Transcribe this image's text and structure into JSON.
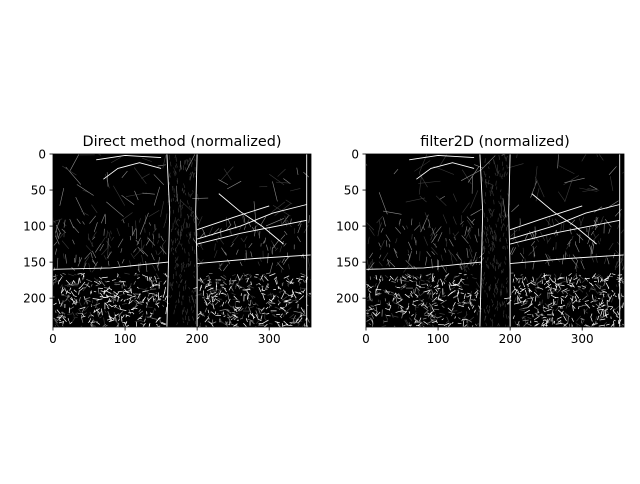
{
  "chart_data": [
    {
      "type": "heatmap",
      "title": "Direct method (normalized)",
      "xlabel": "",
      "ylabel": "",
      "xlim": [
        0,
        358
      ],
      "ylim": [
        240,
        0
      ],
      "x_ticks": [
        0,
        100,
        200,
        300
      ],
      "y_ticks": [
        0,
        50,
        100,
        150,
        200
      ],
      "colormap": "gray",
      "grid": false
    },
    {
      "type": "heatmap",
      "title": "filter2D (normalized)",
      "xlabel": "",
      "ylabel": "",
      "xlim": [
        0,
        358
      ],
      "ylim": [
        240,
        0
      ],
      "x_ticks": [
        0,
        100,
        200,
        300
      ],
      "y_ticks": [
        0,
        50,
        100,
        150,
        200
      ],
      "colormap": "gray",
      "grid": false
    }
  ],
  "colors": {
    "background": "#000000",
    "edge_bright": "#ffffff",
    "edge_mid": "#8c8c8c",
    "edge_dim": "#3c3c3c"
  }
}
